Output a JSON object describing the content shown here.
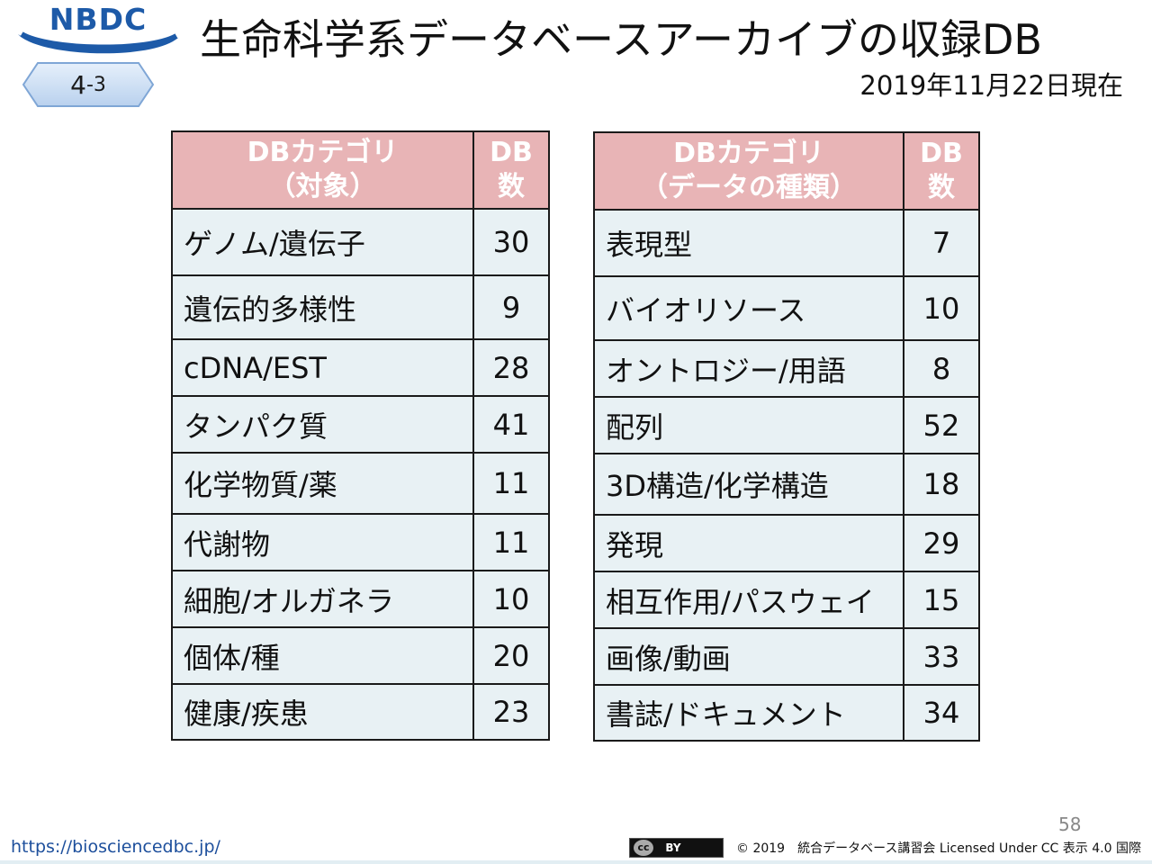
{
  "header": {
    "logo_text": "NBDC",
    "section_badge": {
      "main": "4",
      "sub": "-3"
    },
    "title": "生命科学系データベースアーカイブの収録DB",
    "date": "2019年11月22日現在"
  },
  "tables": {
    "left": {
      "headers": {
        "category": [
          "DBカテゴリ",
          "（対象）"
        ],
        "count": [
          "DB",
          "数"
        ]
      },
      "rows": [
        {
          "category": "ゲノム/遺伝子",
          "count": "30"
        },
        {
          "category": "遺伝的多様性",
          "count": "9"
        },
        {
          "category": "cDNA/EST",
          "count": "28"
        },
        {
          "category": "タンパク質",
          "count": "41"
        },
        {
          "category": "化学物質/薬",
          "count": "11"
        },
        {
          "category": "代謝物",
          "count": "11"
        },
        {
          "category": "細胞/オルガネラ",
          "count": "10"
        },
        {
          "category": "個体/種",
          "count": "20"
        },
        {
          "category": "健康/疾患",
          "count": "23"
        }
      ]
    },
    "right": {
      "headers": {
        "category": [
          "DBカテゴリ",
          "（データの種類）"
        ],
        "count": [
          "DB",
          "数"
        ]
      },
      "rows": [
        {
          "category": "表現型",
          "count": "7"
        },
        {
          "category": "バイオリソース",
          "count": "10"
        },
        {
          "category": "オントロジー/用語",
          "count": "8"
        },
        {
          "category": "配列",
          "count": "52"
        },
        {
          "category": "3D構造/化学構造",
          "count": "18"
        },
        {
          "category": "発現",
          "count": "29"
        },
        {
          "category": "相互作用/パスウェイ",
          "count": "15"
        },
        {
          "category": "画像/動画",
          "count": "33"
        },
        {
          "category": "書誌/ドキュメント",
          "count": "34"
        }
      ]
    }
  },
  "footer": {
    "page_number": "58",
    "url": "https://biosciencedbc.jp/",
    "cc_icon": "cc",
    "cc_by": "BY",
    "license": "© 2019　統合データベース講習会 Licensed Under CC 表示 4.0 国際"
  },
  "colors": {
    "header_fill": "#e8b4b6",
    "cell_fill": "#e8f1f4",
    "logo_blue": "#1d5aa8",
    "badge_fill": "#cfe0f3"
  }
}
